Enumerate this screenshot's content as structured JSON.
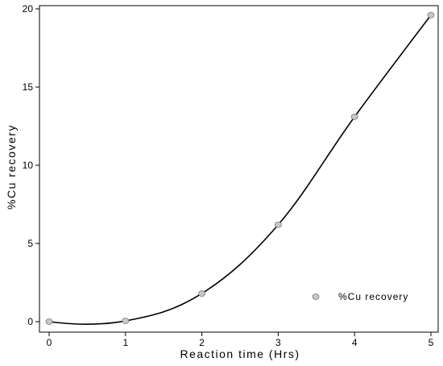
{
  "chart_data": {
    "type": "scatter",
    "xlabel": "Reaction time (Hrs)",
    "ylabel": "%Cu recovery",
    "xlim": [
      0,
      5
    ],
    "ylim": [
      0,
      20
    ],
    "x_ticks": [
      "0",
      "1",
      "2",
      "3",
      "4",
      "5"
    ],
    "y_ticks": [
      "0",
      "5",
      "10",
      "15",
      "20"
    ],
    "grid": false,
    "legend_position": "bottom-right",
    "series": [
      {
        "name": "%Cu recovery",
        "x": [
          0,
          1,
          2,
          3,
          4,
          5
        ],
        "y": [
          0.0,
          0.05,
          1.8,
          6.2,
          13.1,
          19.6
        ],
        "marker_color": "#c8c8c8",
        "trend_line": "smooth"
      }
    ]
  }
}
